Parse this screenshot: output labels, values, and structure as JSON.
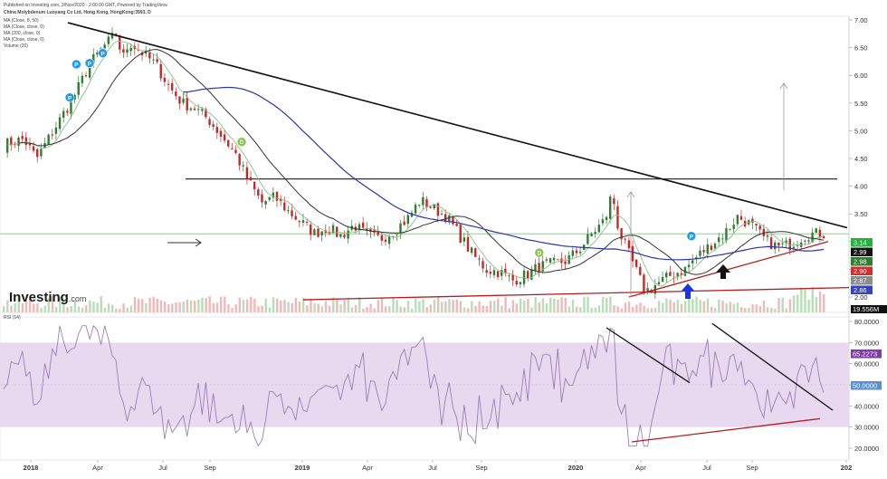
{
  "header": {
    "line1": "Published on Investing.com, 3/Nov/2020 - 2:00:00 GMT, Powered by TradingView.",
    "line2": "China Molybdenum Luoyang Co Ltd, Hong Kong, HongKong:3993, D",
    "ind1": "MA (Close, 8, 50)",
    "ind2": "MA (Close, close, 0)",
    "ind3": "MA (200, close, 0)",
    "ind4": "MA (Close, close, 0)",
    "ind5": "Volume (20)"
  },
  "logo": {
    "text": "Investing",
    "suffix": ".com"
  },
  "rsi_label": "RSI (14)",
  "colors": {
    "background": "#ffffff",
    "candle_up": "#2e7d32",
    "candle_down": "#c62828",
    "ma_fast": "#8bbf8b",
    "ma_mid": "#333333",
    "ma_slow": "#2c35a8",
    "trendline": "#111111",
    "support": "#b71c1c",
    "rsi_band": "#e9d9f0",
    "rsi_line": "#9a7fb0"
  },
  "chart_data": [
    {
      "type": "candlestick",
      "title": "",
      "x_ticks": [
        "2018",
        "Apr",
        "Jul",
        "Sep",
        "2019",
        "Apr",
        "Jul",
        "Sep",
        "2020",
        "Apr",
        "Jul",
        "Sep",
        "202"
      ],
      "y_ticks": [
        "7.00",
        "6.50",
        "6.00",
        "5.50",
        "5.00",
        "4.50",
        "4.00",
        "3.50",
        "3.00",
        "2.50",
        "2.00"
      ],
      "ylim": [
        2.0,
        7.0
      ],
      "price_path": [
        [
          0,
          4.75
        ],
        [
          3,
          4.85
        ],
        [
          5,
          4.5
        ],
        [
          7,
          4.9
        ],
        [
          9,
          5.3
        ],
        [
          11,
          5.7
        ],
        [
          13,
          6.2
        ],
        [
          15,
          6.5
        ],
        [
          17,
          6.75
        ],
        [
          18,
          6.3
        ],
        [
          19,
          6.6
        ],
        [
          21,
          6.4
        ],
        [
          23,
          6.2
        ],
        [
          25,
          5.8
        ],
        [
          27,
          5.5
        ],
        [
          29,
          5.4
        ],
        [
          31,
          5.2
        ],
        [
          33,
          4.9
        ],
        [
          35,
          4.6
        ],
        [
          37,
          4.1
        ],
        [
          39,
          3.7
        ],
        [
          41,
          3.8
        ],
        [
          43,
          3.55
        ],
        [
          45,
          3.35
        ],
        [
          47,
          3.15
        ],
        [
          49,
          3.25
        ],
        [
          51,
          3.1
        ],
        [
          53,
          3.3
        ],
        [
          55,
          3.1
        ],
        [
          57,
          3.05
        ],
        [
          59,
          3.2
        ],
        [
          61,
          3.4
        ],
        [
          63,
          3.75
        ],
        [
          65,
          3.6
        ],
        [
          67,
          3.45
        ],
        [
          69,
          3.1
        ],
        [
          71,
          2.75
        ],
        [
          73,
          2.5
        ],
        [
          75,
          2.45
        ],
        [
          77,
          2.3
        ],
        [
          79,
          2.4
        ],
        [
          81,
          2.55
        ],
        [
          83,
          2.6
        ],
        [
          85,
          2.65
        ],
        [
          87,
          2.85
        ],
        [
          89,
          3.15
        ],
        [
          91,
          3.4
        ],
        [
          92,
          3.9
        ],
        [
          93,
          3.2
        ],
        [
          95,
          2.65
        ],
        [
          97,
          2.1
        ],
        [
          99,
          2.25
        ],
        [
          101,
          2.4
        ],
        [
          103,
          2.5
        ],
        [
          105,
          2.75
        ],
        [
          107,
          2.95
        ],
        [
          109,
          3.15
        ],
        [
          111,
          3.45
        ],
        [
          113,
          3.3
        ],
        [
          115,
          3.05
        ],
        [
          117,
          2.9
        ],
        [
          119,
          2.95
        ],
        [
          121,
          3.1
        ],
        [
          122,
          3.14
        ]
      ],
      "x_span": 124,
      "price_labels": [
        {
          "value": "3.14",
          "price": 3.14,
          "color": "#1fb53b"
        },
        {
          "value": "2.99",
          "price": 2.99,
          "color": "#111111"
        },
        {
          "value": "2.98",
          "price": 2.98,
          "color": "#2e7d32"
        },
        {
          "value": "2.90",
          "price": 2.9,
          "color": "#d32f2f"
        },
        {
          "value": "2.87",
          "price": 2.87,
          "color": "#8c8c8c"
        },
        {
          "value": "2.86",
          "price": 2.86,
          "color": "#3342c4"
        }
      ],
      "volume_label": "19.556M",
      "horizontal_lines": [
        {
          "price": 4.13,
          "color": "#333333"
        },
        {
          "price": 3.14,
          "color": "#9bc69b"
        }
      ],
      "events": [
        {
          "type": "P",
          "t": 15,
          "p": 6.4
        },
        {
          "type": "P",
          "t": 11,
          "p": 6.2
        },
        {
          "type": "P",
          "t": 13,
          "p": 6.22
        },
        {
          "type": "P",
          "t": 10,
          "p": 5.6
        },
        {
          "type": "D",
          "t": 36,
          "p": 4.8
        },
        {
          "type": "D",
          "t": 81,
          "p": 2.8
        },
        {
          "type": "P",
          "t": 104,
          "p": 3.1
        },
        {
          "type": "D",
          "t": 140,
          "p": 3.12
        }
      ]
    },
    {
      "type": "line",
      "title": "",
      "series_label": "RSI (14)",
      "y_ticks": [
        "80.0000",
        "70.0000",
        "60.0000",
        "50.0000",
        "40.0000",
        "30.0000",
        "20.0000"
      ],
      "ylim": [
        20,
        80
      ],
      "band": [
        30,
        70
      ],
      "current_values": [
        {
          "value": "65.2273",
          "color": "#7b3fa0"
        },
        {
          "value": "50.0000",
          "color": "#5b8fd0"
        }
      ]
    }
  ]
}
